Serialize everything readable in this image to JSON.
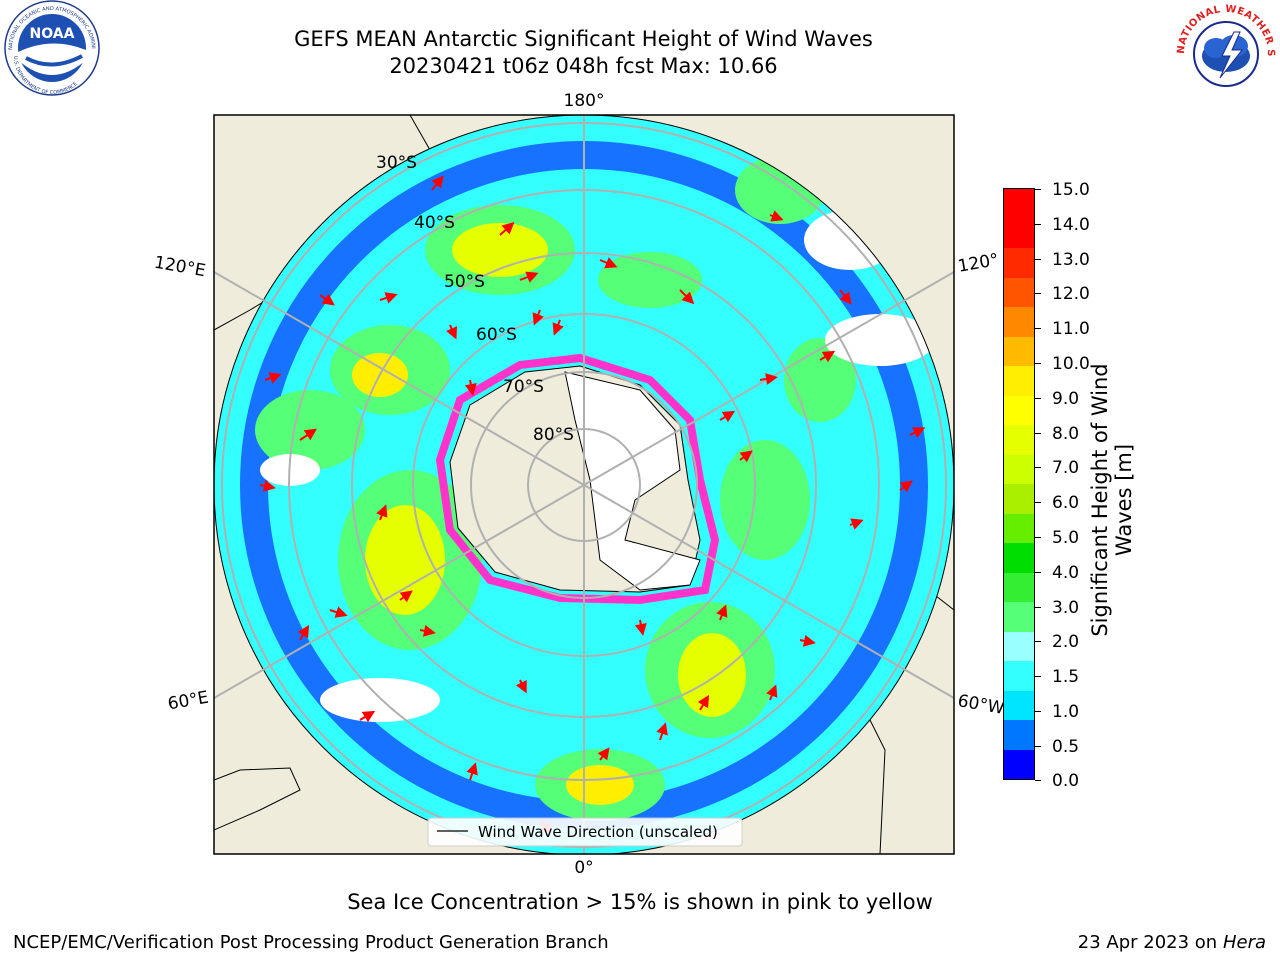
{
  "header": {
    "title_line1": "GEFS MEAN Antarctic Significant Height of Wind Waves",
    "title_line2": "20230421 t06z 048h fcst   Max: 10.66"
  },
  "logos": {
    "noaa": {
      "text": "NOAA",
      "ring_text": "NATIONAL OCEANIC AND ATMOSPHERIC ADMINISTRATION",
      "ring_text_bottom": "U.S. DEPARTMENT OF COMMERCE",
      "icon": "noaa-seagull-logo"
    },
    "nws": {
      "ring_text": "NATIONAL WEATHER SERVICE",
      "icon": "nws-lightning-logo"
    }
  },
  "map": {
    "projection": "south-polar-stereographic",
    "longitude_labels": {
      "top": "180°",
      "bottom": "0°",
      "upper_left": "120°E",
      "lower_left": "60°E",
      "upper_right": "120°",
      "lower_right": "60°W"
    },
    "latitude_labels": [
      "30°S",
      "40°S",
      "50°S",
      "60°S",
      "70°S",
      "80°S"
    ],
    "legend_label": "Wind Wave Direction (unscaled)",
    "colors": {
      "land": "#efecdc",
      "arrows": "#ff0000",
      "sea_ice": "#ff33cc",
      "ocean_no_data": "#ffffff"
    }
  },
  "colorbar": {
    "title": "Significant Height of Wind Waves [m]",
    "title_line1": "Significant Height of Wind",
    "title_line2": "Waves [m]",
    "ticks": [
      "15.0",
      "14.0",
      "13.0",
      "12.0",
      "11.0",
      "10.0",
      "9.0",
      "8.0",
      "7.0",
      "6.0",
      "5.0",
      "4.0",
      "3.0",
      "2.0",
      "1.5",
      "1.0",
      "0.5",
      "0.0"
    ],
    "colors_bottom_to_top": [
      "#0000ff",
      "#0077ff",
      "#00e5ff",
      "#33ffff",
      "#99ffff",
      "#55ff77",
      "#33ee33",
      "#00dd00",
      "#66ee00",
      "#aaee00",
      "#ccff00",
      "#e5ff00",
      "#ffff00",
      "#ffee00",
      "#ffbb00",
      "#ff8800",
      "#ff5500",
      "#ff2a00",
      "#ff0000"
    ]
  },
  "caption": "Sea Ice Concentration > 15% is shown in pink to yellow",
  "footer": {
    "left": "NCEP/EMC/Verification Post Processing Product Generation Branch",
    "right_date": "23 Apr 2023 on ",
    "right_host": "Hera"
  }
}
